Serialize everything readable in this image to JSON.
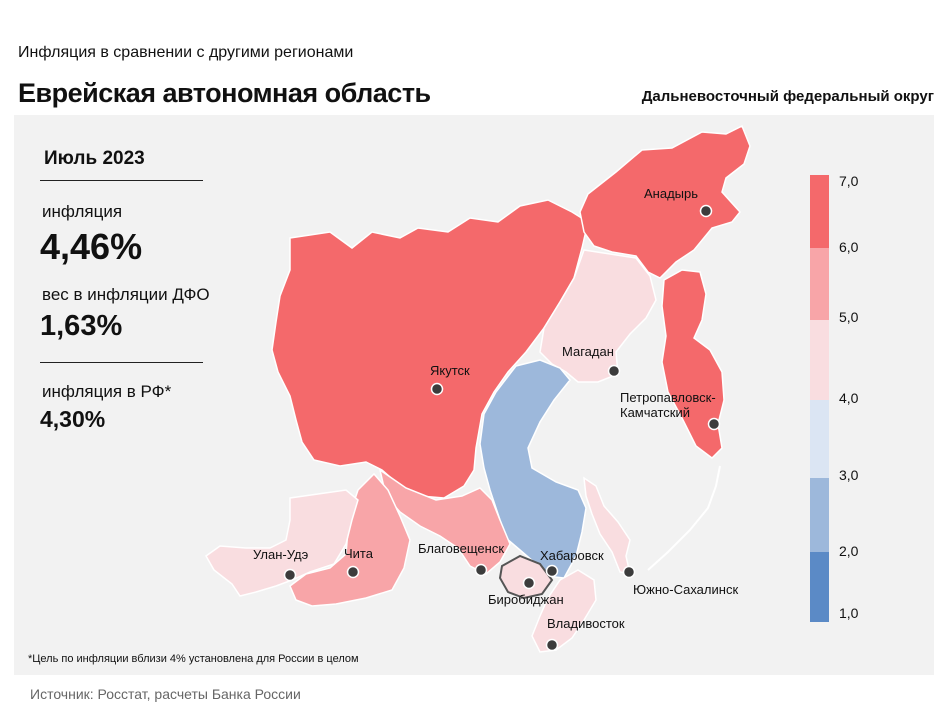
{
  "header": {
    "subtitle": "Инфляция  в сравнении  с другими  регионами",
    "title": "Еврейская автономная область",
    "district": "Дальневосточный федеральный округ"
  },
  "stats": {
    "period": "Июль 2023",
    "inflation_label": "инфляция",
    "inflation_value": "4,46%",
    "weight_label": "вес в инфляции  ДФО",
    "weight_value": "1,63%",
    "rf_label": "инфляция  в РФ*",
    "rf_value": "4,30%"
  },
  "footnote": "*Цель по инфляции вблизи 4% установлена для России в целом",
  "source": "Источник: Росстат,  расчеты Банка  России",
  "colors": {
    "c_6_7": "#f4696b",
    "c_5_6": "#f8a5a8",
    "c_4_5": "#f9dde0",
    "c_3_4": "#dbe5f3",
    "c_2_3": "#9db8db",
    "c_1_2": "#5b8ac6"
  },
  "legend": {
    "ticks": [
      "7,0",
      "6,0",
      "5,0",
      "4,0",
      "3,0",
      "2,0",
      "1,0"
    ]
  },
  "cities": {
    "anadyr": "Анадырь",
    "yakutsk": "Якутск",
    "magadan": "Магадан",
    "petro_1": "Петропавловск-",
    "petro_2": "Камчатский",
    "ulan_ude": "Улан-Удэ",
    "chita": "Чита",
    "blagoveshchensk": "Благовещенск",
    "khabarovsk": "Хабаровск",
    "birobidzhan": "Биробиджан",
    "yuzhno": "Южно-Сахалинск",
    "vladivostok": "Владивосток"
  }
}
